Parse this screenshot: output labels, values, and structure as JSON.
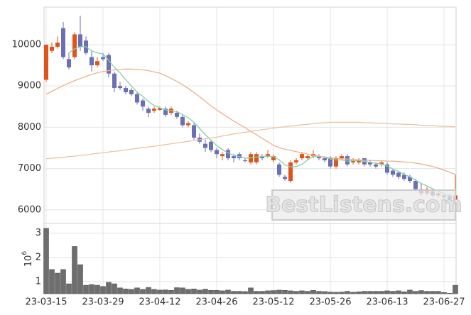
{
  "chart_data": [
    {
      "type": "candlestick",
      "open": [
        9150,
        9850,
        9950,
        10400,
        9650,
        9700,
        10250,
        10100,
        9700,
        9500,
        9700,
        9750,
        9300,
        9000,
        8950,
        8900,
        8800,
        8650,
        8450,
        8400,
        8420,
        8450,
        8350,
        8350,
        8250,
        8050,
        8050,
        7750,
        7600,
        7650,
        7450,
        7300,
        7450,
        7300,
        7350,
        7200,
        7150,
        7150,
        7300,
        7300,
        7200,
        7100,
        6800,
        6700,
        7150,
        7250,
        7250,
        7300,
        7300,
        7250,
        7250,
        7050,
        7250,
        7300,
        7150,
        7150,
        7250,
        7150,
        7100,
        7100,
        7100,
        6950,
        6900,
        6850,
        6800,
        6700,
        6500,
        6400,
        6450,
        6350,
        6350,
        6350,
        6200
      ],
      "high": [
        10000,
        10050,
        10200,
        10550,
        9800,
        10300,
        10700,
        10200,
        9850,
        9700,
        9800,
        9800,
        9350,
        9100,
        9000,
        8950,
        8850,
        8700,
        8500,
        8500,
        8500,
        8500,
        8500,
        8400,
        8300,
        8150,
        8100,
        7850,
        7700,
        7700,
        7500,
        7400,
        7500,
        7350,
        7400,
        7250,
        7400,
        7400,
        7350,
        7450,
        7350,
        7150,
        6850,
        7200,
        7250,
        7400,
        7350,
        7450,
        7350,
        7300,
        7300,
        7300,
        7350,
        7350,
        7250,
        7250,
        7250,
        7200,
        7150,
        7200,
        7150,
        7000,
        6950,
        6900,
        6850,
        6750,
        6650,
        6550,
        6500,
        6450,
        6400,
        6400,
        6850
      ],
      "low": [
        9100,
        9800,
        9900,
        9650,
        9400,
        9650,
        9850,
        9750,
        9350,
        9450,
        9600,
        9200,
        8850,
        8900,
        8800,
        8750,
        8550,
        8400,
        8250,
        8350,
        8400,
        8250,
        8300,
        8200,
        8000,
        8000,
        7700,
        7600,
        7400,
        7400,
        7250,
        7200,
        7200,
        7150,
        7200,
        7150,
        7100,
        7100,
        7200,
        7250,
        7150,
        6800,
        6700,
        6650,
        7100,
        7200,
        7200,
        7250,
        7200,
        7150,
        7000,
        7000,
        7200,
        7050,
        7100,
        7100,
        7050,
        7050,
        7000,
        7050,
        6850,
        6800,
        6750,
        6700,
        6650,
        6450,
        6350,
        6350,
        6300,
        6300,
        6250,
        6200,
        6150
      ],
      "close": [
        10000,
        9950,
        10050,
        9700,
        9450,
        10250,
        9950,
        9800,
        9500,
        9600,
        9650,
        9300,
        8950,
        8950,
        8850,
        8800,
        8600,
        8500,
        8350,
        8450,
        8460,
        8300,
        8450,
        8250,
        8050,
        8100,
        7750,
        7650,
        7500,
        7450,
        7350,
        7350,
        7250,
        7250,
        7250,
        7180,
        7350,
        7350,
        7250,
        7350,
        7300,
        6850,
        6750,
        7150,
        7200,
        7350,
        7300,
        7350,
        7250,
        7200,
        7050,
        7250,
        7300,
        7100,
        7200,
        7200,
        7100,
        7100,
        7050,
        7150,
        6900,
        6850,
        6800,
        6750,
        6700,
        6500,
        6400,
        6500,
        6350,
        6400,
        6300,
        6250,
        6350
      ],
      "up_color": "#e0541b",
      "down_color": "#6b6fb5",
      "lines": [
        {
          "color": "#7fd3a8",
          "values": [
            null,
            null,
            null,
            null,
            9800,
            9900,
            9950,
            9950,
            9850,
            9800,
            9780,
            9620,
            9450,
            9320,
            9150,
            9000,
            8850,
            8750,
            8620,
            8530,
            8470,
            8420,
            8400,
            8380,
            8310,
            8230,
            8120,
            7970,
            7820,
            7690,
            7560,
            7460,
            7380,
            7320,
            7290,
            7250,
            7260,
            7280,
            7290,
            7300,
            7290,
            7210,
            7090,
            7040,
            7050,
            7100,
            7210,
            7300,
            7290,
            7280,
            7230,
            7210,
            7210,
            7180,
            7190,
            7200,
            7170,
            7150,
            7130,
            7110,
            7060,
            6990,
            6930,
            6860,
            6800,
            6720,
            6640,
            6580,
            6510,
            6450,
            6400,
            6340,
            6320
          ]
        },
        {
          "color": "#efb08e",
          "values": [
            8800,
            8870,
            8940,
            9010,
            9070,
            9130,
            9180,
            9230,
            9280,
            9320,
            9350,
            9370,
            9390,
            9400,
            9410,
            9410,
            9400,
            9390,
            9370,
            9340,
            9310,
            9250,
            9180,
            9110,
            9030,
            8940,
            8840,
            8740,
            8630,
            8520,
            8420,
            8330,
            8240,
            8150,
            8070,
            7990,
            7900,
            7820,
            7730,
            7650,
            7560,
            7510,
            7470,
            7440,
            7410,
            7380,
            7350,
            7320,
            7300,
            7280,
            7260,
            7250,
            7240,
            7230,
            7220,
            7210,
            7200,
            7200,
            7190,
            7190,
            7180,
            7180,
            7170,
            7160,
            7150,
            7130,
            7110,
            7080,
            7050,
            7010,
            6960,
            6910,
            6860
          ]
        },
        {
          "color": "#e9c3a3",
          "values": [
            7240,
            7250,
            7260,
            7270,
            7290,
            7300,
            7320,
            7330,
            7350,
            7370,
            7380,
            7400,
            7420,
            7430,
            7450,
            7470,
            7490,
            7510,
            7520,
            7540,
            7560,
            7580,
            7600,
            7620,
            7640,
            7660,
            7680,
            7700,
            7720,
            7740,
            7760,
            7790,
            7810,
            7840,
            7860,
            7880,
            7900,
            7920,
            7940,
            7960,
            7980,
            8000,
            8010,
            8030,
            8040,
            8060,
            8070,
            8090,
            8100,
            8110,
            8120,
            8120,
            8120,
            8120,
            8120,
            8120,
            8110,
            8110,
            8100,
            8100,
            8090,
            8080,
            8080,
            8070,
            8070,
            8060,
            8050,
            8040,
            8040,
            8030,
            8020,
            8020,
            8010
          ]
        }
      ],
      "ylim": [
        5670,
        10910
      ],
      "yticks": [
        6000,
        7000,
        8000,
        9000,
        10000
      ],
      "grid": true,
      "watermark": "BestListens.com"
    },
    {
      "type": "bar",
      "categories": [
        "23-03-15",
        null,
        null,
        null,
        null,
        null,
        null,
        null,
        null,
        null,
        "23-03-29",
        null,
        null,
        null,
        null,
        null,
        null,
        null,
        null,
        null,
        "23-04-12",
        null,
        null,
        null,
        null,
        null,
        null,
        null,
        null,
        null,
        "23-04-26",
        null,
        null,
        null,
        null,
        null,
        null,
        null,
        null,
        null,
        "23-05-12",
        null,
        null,
        null,
        null,
        null,
        null,
        null,
        null,
        null,
        "23-05-26",
        null,
        null,
        null,
        null,
        null,
        null,
        null,
        null,
        null,
        "23-06-13",
        null,
        null,
        null,
        null,
        null,
        null,
        null,
        null,
        null,
        "23-06-27",
        null,
        null
      ],
      "values": [
        3.2,
        1.5,
        1.35,
        1.5,
        0.91,
        2.45,
        1.7,
        0.85,
        0.88,
        0.85,
        0.8,
        0.97,
        0.91,
        0.74,
        0.7,
        0.68,
        0.74,
        0.68,
        0.76,
        0.68,
        0.65,
        0.66,
        0.64,
        0.75,
        0.74,
        0.68,
        0.7,
        0.65,
        0.69,
        0.64,
        0.64,
        0.62,
        0.65,
        0.6,
        0.6,
        0.59,
        0.74,
        0.6,
        0.6,
        0.62,
        0.63,
        0.65,
        0.64,
        0.62,
        0.6,
        0.62,
        0.6,
        0.64,
        0.6,
        0.59,
        0.57,
        0.56,
        0.57,
        0.6,
        0.56,
        0.58,
        0.6,
        0.6,
        0.6,
        0.6,
        0.62,
        0.6,
        0.62,
        0.58,
        0.65,
        0.6,
        0.63,
        0.6,
        0.6,
        0.6,
        0.55,
        0.52,
        0.85
      ],
      "color": "#6e6e6e",
      "ylim": [
        0.5,
        3.4
      ],
      "yticks": [
        1,
        2,
        3
      ],
      "grid": true,
      "multiplier_base": "10",
      "multiplier_exponent": "6"
    }
  ]
}
